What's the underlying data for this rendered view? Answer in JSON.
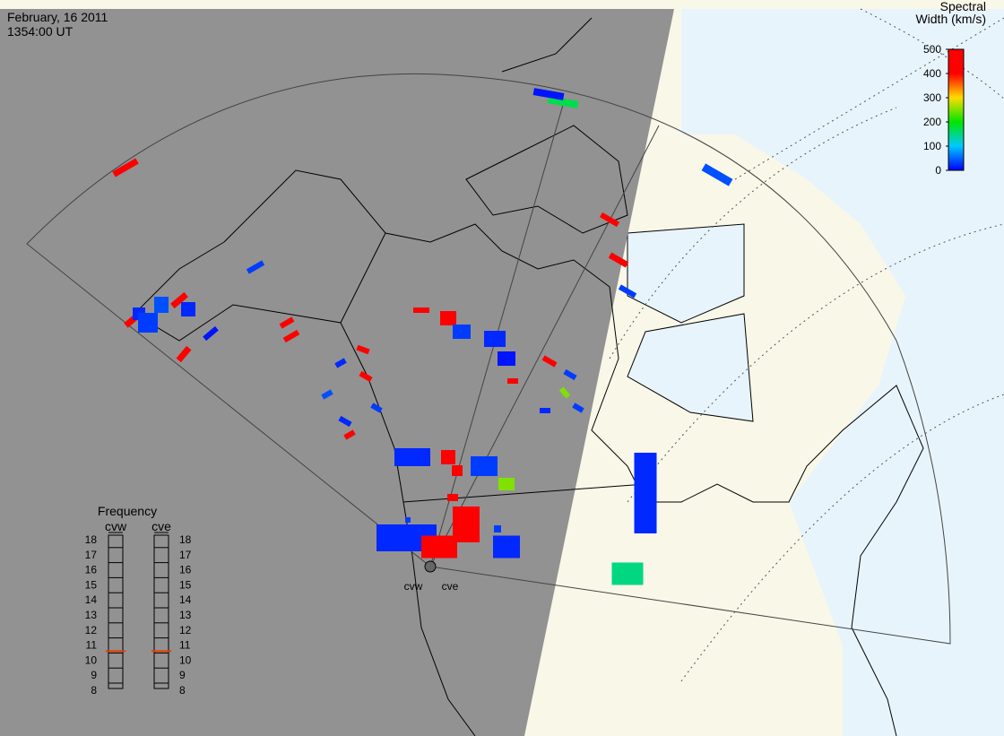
{
  "header": {
    "date": "February, 16 2011",
    "time": "1354:00 UT"
  },
  "colorbar": {
    "title_line1": "Spectral",
    "title_line2": "Width (km/s)",
    "range": [
      0,
      500
    ],
    "ticks": [
      0,
      100,
      200,
      300,
      400,
      500
    ]
  },
  "radars": [
    {
      "name": "cvw"
    },
    {
      "name": "cve"
    }
  ],
  "frequency": {
    "title": "Frequency",
    "range": [
      8,
      18
    ],
    "ticks": [
      8,
      9,
      10,
      11,
      12,
      13,
      14,
      15,
      16,
      17,
      18
    ],
    "panels": [
      {
        "name": "cvw",
        "value": 10.6
      },
      {
        "name": "cve",
        "value": 10.6
      }
    ]
  },
  "echoes": {
    "spectral_width": [
      450,
      480,
      20,
      30,
      40,
      460,
      470,
      20,
      10,
      30,
      470,
      480,
      450,
      20,
      30,
      20,
      470,
      460,
      40,
      470,
      480,
      30,
      20,
      10,
      460,
      30,
      250,
      470,
      20,
      30,
      20,
      470,
      480,
      30,
      250,
      460,
      20,
      30,
      20,
      470,
      460,
      30,
      20,
      170,
      10,
      470,
      40,
      30,
      480,
      20,
      150
    ]
  }
}
